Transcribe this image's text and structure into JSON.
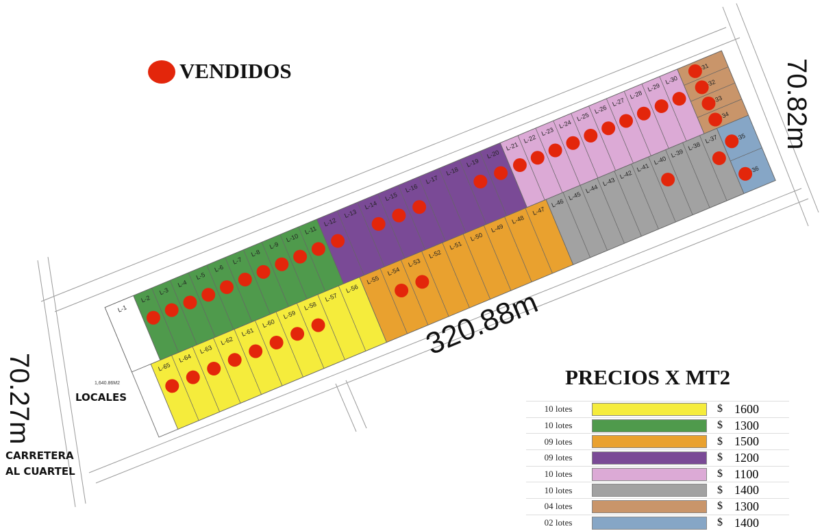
{
  "legend": {
    "label": "VENDIDOS",
    "color": "#e3260b"
  },
  "dimensions": {
    "length": "320.88m",
    "right": "70.82m",
    "left": "70.27m"
  },
  "labels": {
    "locales": "LOCALES",
    "locales_area": "1,640.86M2",
    "road": "CARRETERA AL CUARTEL"
  },
  "prices": {
    "title": "PRECIOS X MT2",
    "currency": "$",
    "rows": [
      {
        "lots": "10 lotes",
        "color": "#f5ec3c",
        "price": 1600
      },
      {
        "lots": "10 lotes",
        "color": "#4f9a4c",
        "price": 1300
      },
      {
        "lots": "09 lotes",
        "color": "#e9a12f",
        "price": 1500
      },
      {
        "lots": "09 lotes",
        "color": "#7a4a96",
        "price": 1200
      },
      {
        "lots": "10 lotes",
        "color": "#dcaad6",
        "price": 1100
      },
      {
        "lots": "10 lotes",
        "color": "#a2a2a2",
        "price": 1400
      },
      {
        "lots": "04 lotes",
        "color": "#c9956a",
        "price": 1300
      },
      {
        "lots": "02 lotes",
        "color": "#86a6c6",
        "price": 1400
      }
    ]
  },
  "lots": [
    {
      "label": "L-1",
      "sold": false
    },
    {
      "label": "L-2",
      "sold": true
    },
    {
      "label": "L-3",
      "sold": true
    },
    {
      "label": "L-4",
      "sold": true
    },
    {
      "label": "L-5",
      "sold": true
    },
    {
      "label": "L-6",
      "sold": true
    },
    {
      "label": "L-7",
      "sold": true
    },
    {
      "label": "L-8",
      "sold": true
    },
    {
      "label": "L-9",
      "sold": true
    },
    {
      "label": "L-10",
      "sold": true
    },
    {
      "label": "L-11",
      "sold": true
    },
    {
      "label": "L-12",
      "sold": true
    },
    {
      "label": "L-13",
      "sold": false
    },
    {
      "label": "L-14",
      "sold": true
    },
    {
      "label": "L-15",
      "sold": true
    },
    {
      "label": "L-16",
      "sold": true
    },
    {
      "label": "L-17",
      "sold": false
    },
    {
      "label": "L-18",
      "sold": false
    },
    {
      "label": "L-19",
      "sold": true
    },
    {
      "label": "L-20",
      "sold": true
    },
    {
      "label": "L-21",
      "sold": true
    },
    {
      "label": "L-22",
      "sold": true
    },
    {
      "label": "L-23",
      "sold": true
    },
    {
      "label": "L-24",
      "sold": true
    },
    {
      "label": "L-25",
      "sold": true
    },
    {
      "label": "L-26",
      "sold": true
    },
    {
      "label": "L-27",
      "sold": true
    },
    {
      "label": "L-28",
      "sold": true
    },
    {
      "label": "L-29",
      "sold": true
    },
    {
      "label": "L-30",
      "sold": true
    },
    {
      "label": "L-31",
      "sold": true
    },
    {
      "label": "L-32",
      "sold": true
    },
    {
      "label": "L-33",
      "sold": true
    },
    {
      "label": "L-34",
      "sold": true
    },
    {
      "label": "L-35",
      "sold": true
    },
    {
      "label": "L-36",
      "sold": true
    },
    {
      "label": "L-37",
      "sold": true
    },
    {
      "label": "L-38",
      "sold": false
    },
    {
      "label": "L-39",
      "sold": false
    },
    {
      "label": "L-40",
      "sold": true
    },
    {
      "label": "L-41",
      "sold": false
    },
    {
      "label": "L-42",
      "sold": false
    },
    {
      "label": "L-43",
      "sold": false
    },
    {
      "label": "L-44",
      "sold": false
    },
    {
      "label": "L-45",
      "sold": false
    },
    {
      "label": "L-46",
      "sold": false
    },
    {
      "label": "L-47",
      "sold": false
    },
    {
      "label": "L-48",
      "sold": false
    },
    {
      "label": "L-49",
      "sold": false
    },
    {
      "label": "L-50",
      "sold": false
    },
    {
      "label": "L-51",
      "sold": false
    },
    {
      "label": "L-52",
      "sold": false
    },
    {
      "label": "L-53",
      "sold": true
    },
    {
      "label": "L-54",
      "sold": true
    },
    {
      "label": "L-55",
      "sold": false
    },
    {
      "label": "L-56",
      "sold": false
    },
    {
      "label": "L-57",
      "sold": false
    },
    {
      "label": "L-58",
      "sold": true
    },
    {
      "label": "L-59",
      "sold": true
    },
    {
      "label": "L-60",
      "sold": true
    },
    {
      "label": "L-61",
      "sold": true
    },
    {
      "label": "L-62",
      "sold": true
    },
    {
      "label": "L-63",
      "sold": true
    },
    {
      "label": "L-64",
      "sold": true
    },
    {
      "label": "L-65",
      "sold": true
    }
  ]
}
